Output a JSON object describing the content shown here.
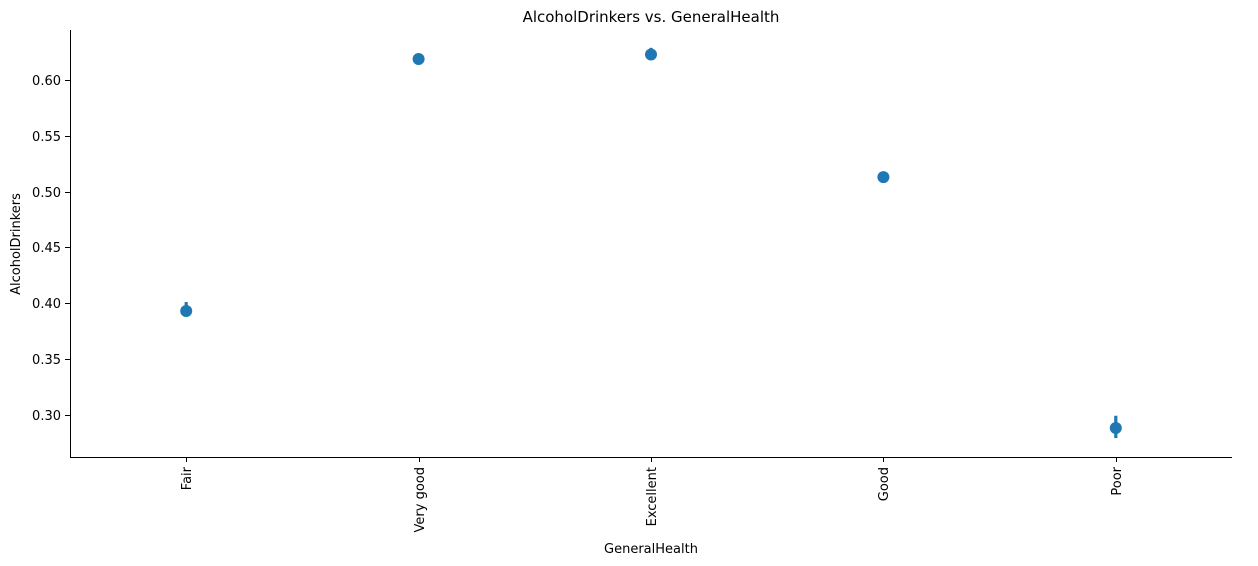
{
  "chart_data": {
    "type": "scatter",
    "title": "AlcoholDrinkers vs. GeneralHealth",
    "xlabel": "GeneralHealth",
    "ylabel": "AlcoholDrinkers",
    "categories": [
      "Fair",
      "Very good",
      "Excellent",
      "Good",
      "Poor"
    ],
    "values": [
      0.393,
      0.619,
      0.623,
      0.513,
      0.288
    ],
    "ci_low": [
      0.389,
      0.616,
      0.619,
      0.51,
      0.279
    ],
    "ci_high": [
      0.401,
      0.622,
      0.629,
      0.517,
      0.299
    ],
    "yticks": [
      0.3,
      0.35,
      0.4,
      0.45,
      0.5,
      0.55,
      0.6
    ],
    "ylim": [
      0.262,
      0.645
    ],
    "grid": false,
    "legend": "none",
    "color": "#1f77b4"
  }
}
